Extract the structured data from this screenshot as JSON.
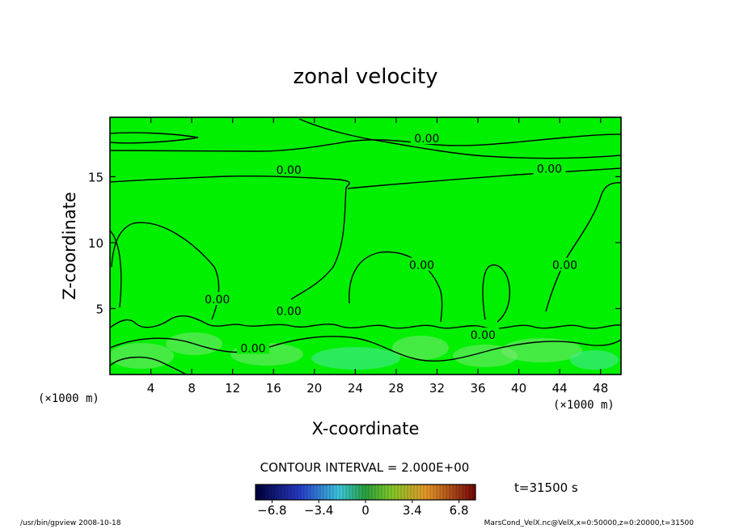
{
  "chart_data": {
    "type": "heatmap",
    "title": "zonal velocity",
    "xlabel": "X-coordinate",
    "ylabel": "Z-coordinate",
    "x_unit_left": "(×1000 m)",
    "x_unit_right": "(×1000 m)",
    "xlim": [
      0,
      50
    ],
    "ylim": [
      0,
      19.5
    ],
    "x_ticks": [
      4,
      8,
      12,
      16,
      20,
      24,
      28,
      32,
      36,
      40,
      44,
      48
    ],
    "y_ticks": [
      5,
      10,
      15
    ],
    "contour_interval_text": "CONTOUR INTERVAL = 2.000E+00",
    "contour_labels": [
      {
        "text": "0.00",
        "x": 31.0,
        "z": 17.9
      },
      {
        "text": "0.00",
        "x": 17.5,
        "z": 15.5
      },
      {
        "text": "0.00",
        "x": 43.0,
        "z": 15.6
      },
      {
        "text": "0.00",
        "x": 10.5,
        "z": 5.7
      },
      {
        "text": "0.00",
        "x": 17.5,
        "z": 4.8
      },
      {
        "text": "0.00",
        "x": 30.5,
        "z": 8.3
      },
      {
        "text": "0.00",
        "x": 44.5,
        "z": 8.3
      },
      {
        "text": "0.00",
        "x": 36.5,
        "z": 3.0
      },
      {
        "text": "0.00",
        "x": 14.0,
        "z": 2.0
      }
    ],
    "time_label": "t=31500 s",
    "colorbar": {
      "tick_labels": [
        "−6.8",
        "−3.4",
        "0",
        "3.4",
        "6.8"
      ],
      "tick_values": [
        -6.8,
        -3.4,
        0,
        3.4,
        6.8
      ],
      "range": [
        -8,
        8
      ]
    },
    "colors": {
      "field": "#00f000",
      "field_light": "#7de87a",
      "field_cyan": "#4ee8a8"
    }
  },
  "footer": {
    "left": "/usr/bin/gpview  2008-10-18",
    "right": "MarsCond_VelX.nc@VelX,x=0:50000,z=0:20000,t=31500"
  }
}
